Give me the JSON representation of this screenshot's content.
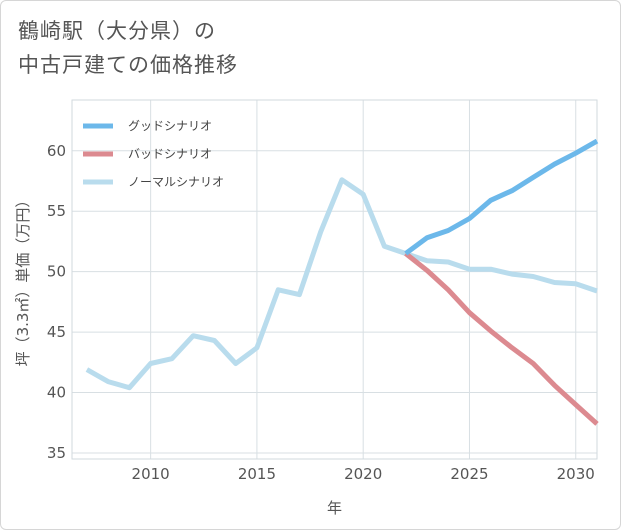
{
  "title": {
    "line1": "鶴崎駅（大分県）の",
    "line2": "中古戸建ての価格推移"
  },
  "chart_data": {
    "type": "line",
    "xlabel": "年",
    "ylabel": "坪（3.3㎡）単価（万円）",
    "xlim": [
      2006.3,
      2031
    ],
    "ylim": [
      34.5,
      64.2
    ],
    "xticks": [
      2010,
      2015,
      2020,
      2025,
      2030
    ],
    "yticks": [
      35,
      40,
      45,
      50,
      55,
      60
    ],
    "grid": true,
    "legend_position": "top-left",
    "series": [
      {
        "name": "グッドシナリオ",
        "color": "#6cb8ea",
        "x": [
          2022,
          2023,
          2024,
          2025,
          2026,
          2027,
          2028,
          2029,
          2030,
          2031
        ],
        "y": [
          51.5,
          52.8,
          53.4,
          54.4,
          55.9,
          56.7,
          57.8,
          58.9,
          59.8,
          60.8
        ]
      },
      {
        "name": "バッドシナリオ",
        "color": "#dc8a90",
        "x": [
          2022,
          2023,
          2024,
          2025,
          2026,
          2027,
          2028,
          2029,
          2030,
          2031
        ],
        "y": [
          51.5,
          50.1,
          48.5,
          46.6,
          45.1,
          43.7,
          42.4,
          40.6,
          39.0,
          37.4
        ]
      },
      {
        "name": "ノーマルシナリオ",
        "color": "#b9dced",
        "x": [
          2007,
          2008,
          2009,
          2010,
          2011,
          2012,
          2013,
          2014,
          2015,
          2016,
          2017,
          2018,
          2019,
          2020,
          2021,
          2022,
          2023,
          2024,
          2025,
          2026,
          2027,
          2028,
          2029,
          2030,
          2031
        ],
        "y": [
          41.9,
          40.9,
          40.4,
          42.4,
          42.8,
          44.7,
          44.3,
          42.4,
          43.7,
          48.5,
          48.1,
          53.3,
          57.6,
          56.4,
          52.1,
          51.5,
          50.9,
          50.8,
          50.2,
          50.2,
          49.8,
          49.6,
          49.1,
          49.0,
          48.4
        ]
      }
    ]
  }
}
